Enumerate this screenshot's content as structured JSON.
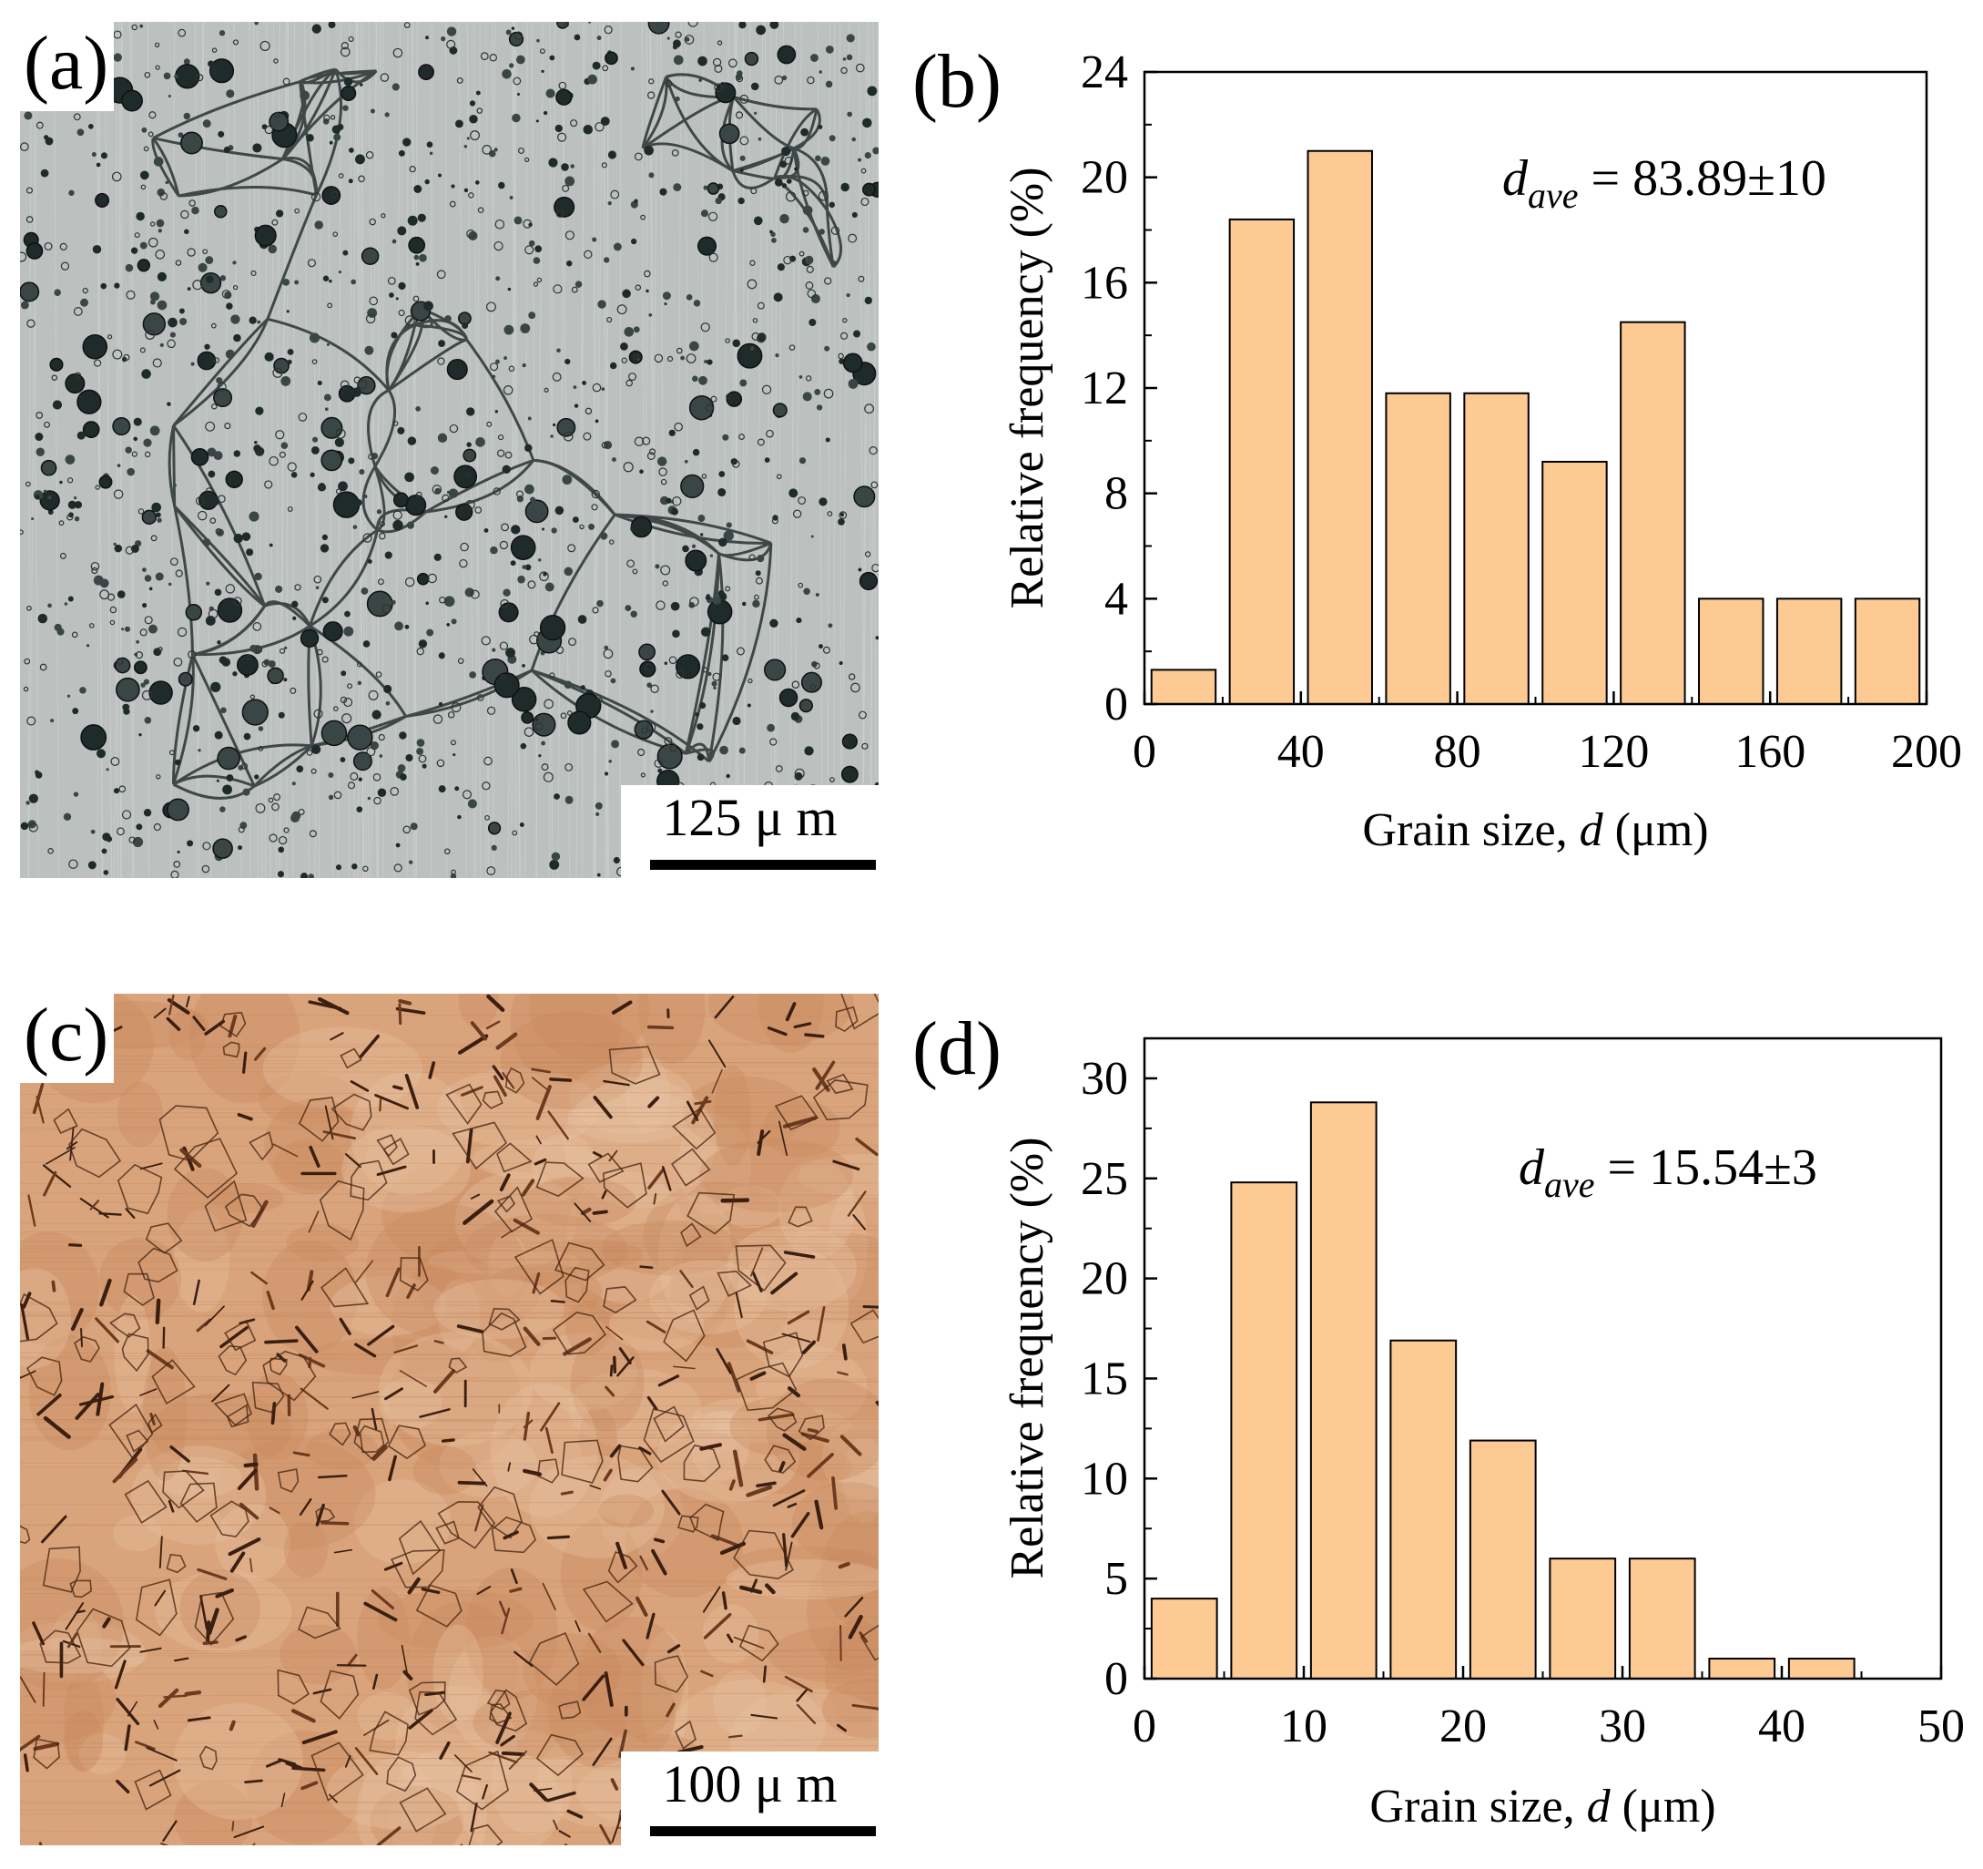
{
  "panels": {
    "a": {
      "label": "(a)",
      "scale_text": "125  μ m"
    },
    "b": {
      "label": "(b)"
    },
    "c": {
      "label": "(c)",
      "scale_text": "100  μ m"
    },
    "d": {
      "label": "(d)"
    }
  },
  "colors": {
    "bar_fill": "#fdca94",
    "bar_stroke": "#000000",
    "micrograph_a_base": "#bcc1bf",
    "micrograph_c_base": "#d9a47c"
  },
  "chart_data": [
    {
      "type": "bar",
      "panel": "b",
      "xlabel": "Grain size, d (μm)",
      "ylabel": "Relative frequency (%)",
      "annotation": {
        "symbol": "d",
        "subscript": "ave",
        "text": " = 83.89±10"
      },
      "xlim": [
        0,
        200
      ],
      "ylim": [
        0,
        24
      ],
      "xticks": [
        0,
        40,
        80,
        120,
        160,
        200
      ],
      "yticks": [
        0,
        4,
        8,
        12,
        16,
        20,
        24
      ],
      "bin_width": 20,
      "x": [
        10,
        30,
        50,
        70,
        90,
        110,
        130,
        150,
        170,
        190
      ],
      "values": [
        1.3,
        18.4,
        21.0,
        11.8,
        11.8,
        9.2,
        14.5,
        4.0,
        4.0,
        4.0
      ]
    },
    {
      "type": "bar",
      "panel": "d",
      "xlabel": "Grain size, d (μm)",
      "ylabel": "Relative frequency (%)",
      "annotation": {
        "symbol": "d",
        "subscript": "ave",
        "text": " = 15.54±3"
      },
      "xlim": [
        0,
        50
      ],
      "ylim": [
        0,
        32
      ],
      "xticks": [
        0,
        10,
        20,
        30,
        40,
        50
      ],
      "yticks": [
        0,
        5,
        10,
        15,
        20,
        25,
        30
      ],
      "bin_width": 5,
      "x": [
        2.5,
        7.5,
        12.5,
        17.5,
        22.5,
        27.5,
        32.5,
        37.5,
        42.5
      ],
      "values": [
        4.0,
        24.8,
        28.8,
        16.9,
        11.9,
        6.0,
        6.0,
        1.0,
        1.0
      ]
    }
  ]
}
